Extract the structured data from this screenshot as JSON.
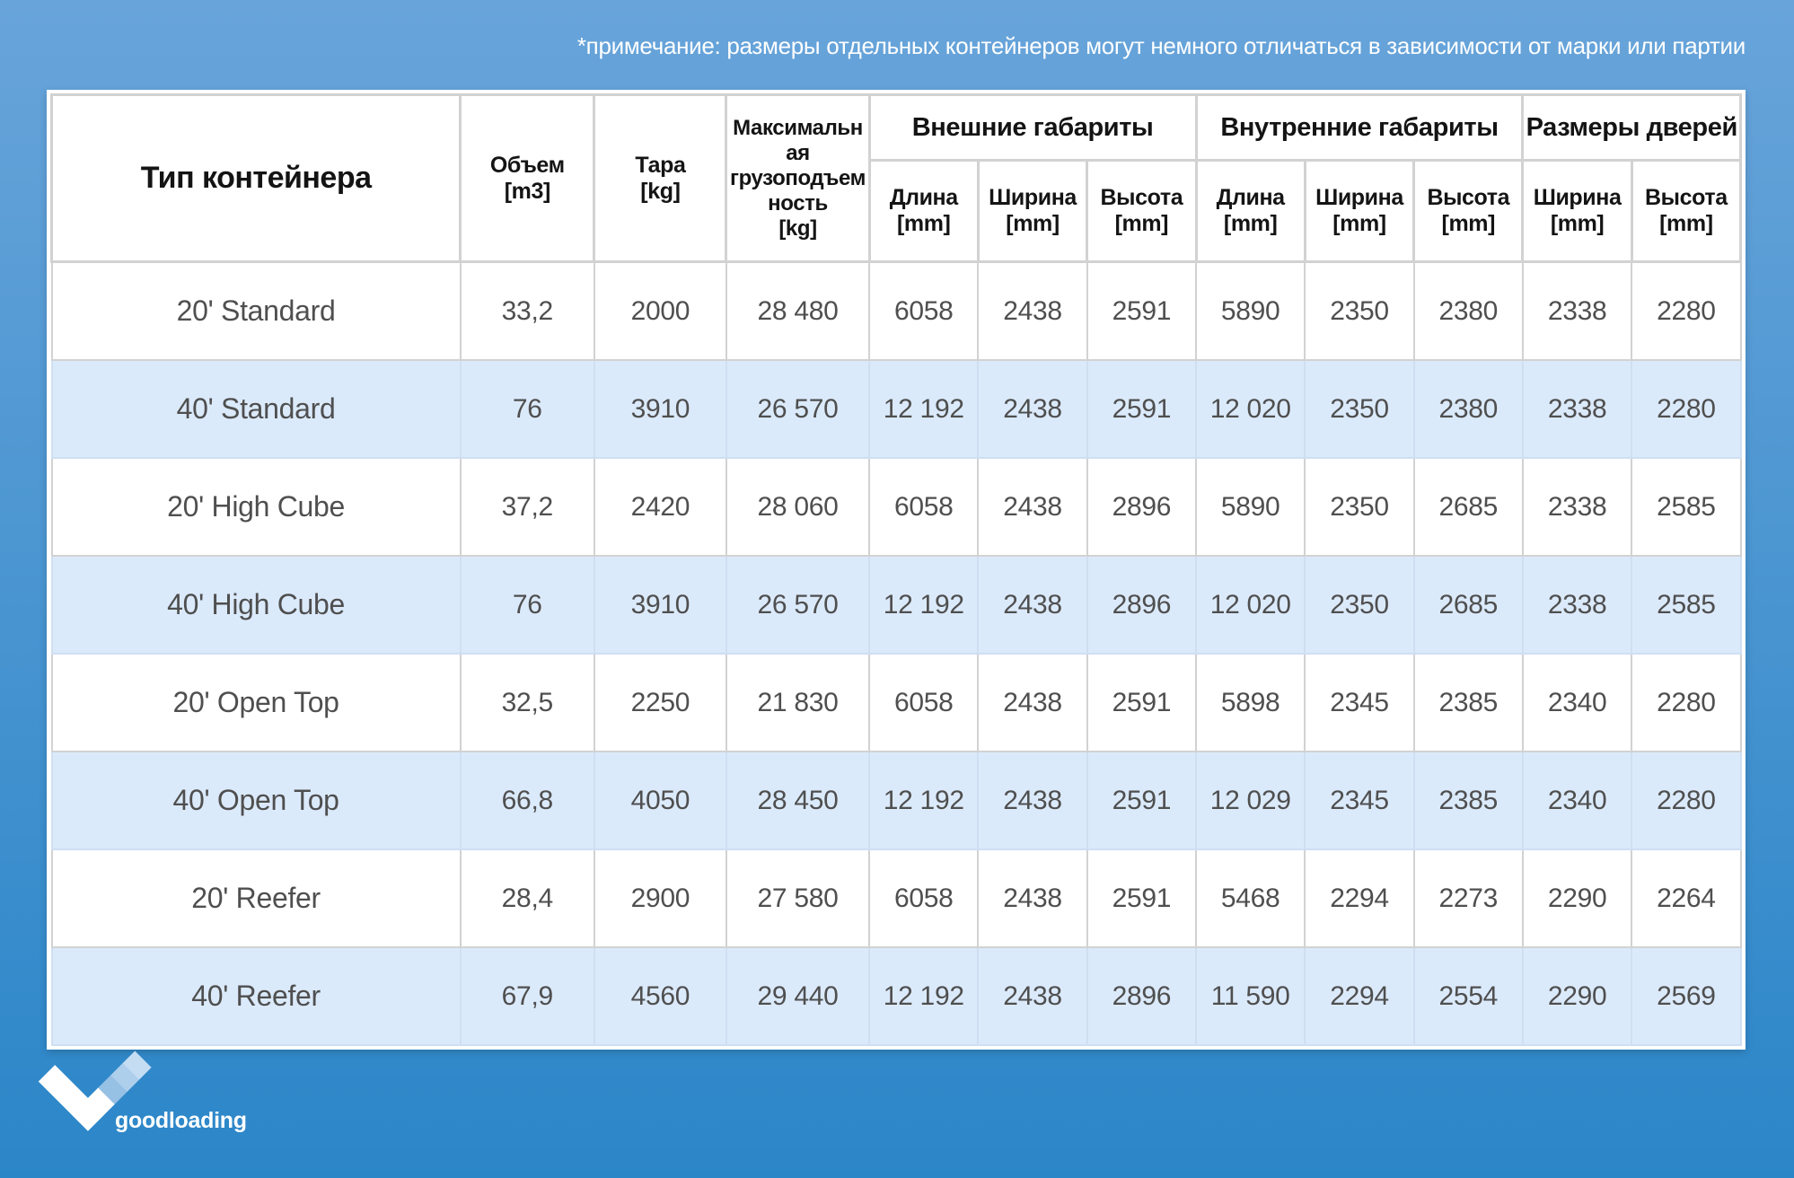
{
  "note": "*примечание: размеры отдельных контейнеров могут немного отличаться в зависимости от марки или партии",
  "table": {
    "header": {
      "type": "Тип контейнера",
      "volume": "Объем\n[m3]",
      "tare": "Тара\n[kg]",
      "payload": "Максимальная грузоподъемность\n[kg]",
      "groups": [
        {
          "label": "Внешние габариты",
          "cols": [
            "Длина\n[mm]",
            "Ширина\n[mm]",
            "Высота\n[mm]"
          ]
        },
        {
          "label": "Внутренние габариты",
          "cols": [
            "Длина\n[mm]",
            "Ширина\n[mm]",
            "Высота\n[mm]"
          ]
        },
        {
          "label": "Размеры дверей",
          "cols": [
            "Ширина\n[mm]",
            "Высота\n[mm]"
          ]
        }
      ]
    }
  },
  "chart_data": {
    "type": "table",
    "title": "Размеры контейнеров",
    "note": "*примечание: размеры отдельных контейнеров могут немного отличаться в зависимости от марки или партии",
    "columns": [
      "Тип контейнера",
      "Объем [m3]",
      "Тара [kg]",
      "Максимальная грузоподъемность [kg]",
      "Внешние габариты: Длина [mm]",
      "Внешние габариты: Ширина [mm]",
      "Внешние габариты: Высота [mm]",
      "Внутренние габариты: Длина [mm]",
      "Внутренние габариты: Ширина [mm]",
      "Внутренние габариты: Высота [mm]",
      "Размеры дверей: Ширина [mm]",
      "Размеры дверей: Высота [mm]"
    ],
    "rows": [
      [
        "20' Standard",
        "33,2",
        "2000",
        "28 480",
        "6058",
        "2438",
        "2591",
        "5890",
        "2350",
        "2380",
        "2338",
        "2280"
      ],
      [
        "40' Standard",
        "76",
        "3910",
        "26 570",
        "12 192",
        "2438",
        "2591",
        "12 020",
        "2350",
        "2380",
        "2338",
        "2280"
      ],
      [
        "20' High Cube",
        "37,2",
        "2420",
        "28 060",
        "6058",
        "2438",
        "2896",
        "5890",
        "2350",
        "2685",
        "2338",
        "2585"
      ],
      [
        "40' High Cube",
        "76",
        "3910",
        "26 570",
        "12 192",
        "2438",
        "2896",
        "12 020",
        "2350",
        "2685",
        "2338",
        "2585"
      ],
      [
        "20' Open Top",
        "32,5",
        "2250",
        "21 830",
        "6058",
        "2438",
        "2591",
        "5898",
        "2345",
        "2385",
        "2340",
        "2280"
      ],
      [
        "40' Open Top",
        "66,8",
        "4050",
        "28 450",
        "12 192",
        "2438",
        "2591",
        "12 029",
        "2345",
        "2385",
        "2340",
        "2280"
      ],
      [
        "20' Reefer",
        "28,4",
        "2900",
        "27 580",
        "6058",
        "2438",
        "2591",
        "5468",
        "2294",
        "2273",
        "2290",
        "2264"
      ],
      [
        "40' Reefer",
        "67,9",
        "4560",
        "29 440",
        "12 192",
        "2438",
        "2896",
        "11 590",
        "2294",
        "2554",
        "2290",
        "2569"
      ]
    ]
  },
  "logo": {
    "text": "goodloading"
  },
  "colors": {
    "bg_top": "#68a4da",
    "bg_bottom": "#2b86c8",
    "row_base": "#ffffff",
    "row_alt": "#dbeafb",
    "border": "#d2d2d2",
    "cell_text": "#4f4f4f",
    "note_text": "#ffffff",
    "check_main": "#ffffff",
    "check_step1": "#97c0e5",
    "check_step2": "#aecfec",
    "check_step3": "#c4ddf3"
  }
}
